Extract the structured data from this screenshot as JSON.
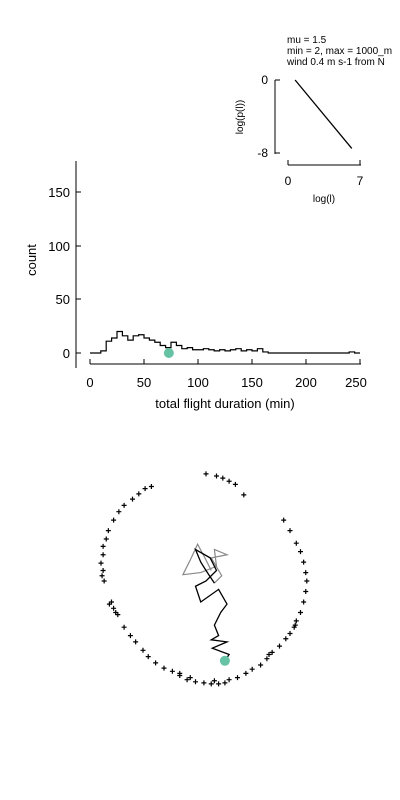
{
  "colors": {
    "marker": "#66c2a5",
    "line": "#000000",
    "track_old": "#888888"
  },
  "chart_data": [
    {
      "type": "line",
      "panel": "inset",
      "annotation_lines": [
        "mu = 1.5",
        "min = 2, max = 1000_m",
        "wind 0.4 m s-1 from N"
      ],
      "xlabel": "log(l)",
      "ylabel": "log(p(l))",
      "xlim": [
        0,
        7
      ],
      "ylim": [
        -8,
        0
      ],
      "xticks": [
        "0",
        "7"
      ],
      "yticks": [
        "0",
        "-8"
      ],
      "x": [
        0.69,
        6.2
      ],
      "y": [
        0,
        -7.5
      ]
    },
    {
      "type": "bar",
      "panel": "histogram",
      "style": "step",
      "xlabel": "total flight duration (min)",
      "ylabel": "count",
      "xlim": [
        0,
        250
      ],
      "ylim": [
        -12,
        180
      ],
      "xticks": [
        "0",
        "50",
        "100",
        "150",
        "200",
        "250"
      ],
      "yticks": [
        "0",
        "50",
        "100",
        "150"
      ],
      "bin_width": 5,
      "bin_starts": [
        0,
        5,
        10,
        15,
        20,
        25,
        30,
        35,
        40,
        45,
        50,
        55,
        60,
        65,
        70,
        75,
        80,
        85,
        90,
        95,
        100,
        105,
        110,
        115,
        120,
        125,
        130,
        135,
        140,
        145,
        150,
        155,
        160,
        165,
        170,
        175,
        180,
        185,
        190,
        195,
        200,
        205,
        210,
        215,
        220,
        225,
        230,
        235,
        240,
        245
      ],
      "counts": [
        0,
        0,
        2,
        11,
        14,
        20,
        16,
        12,
        16,
        17,
        14,
        12,
        10,
        7,
        5,
        10,
        7,
        4,
        5,
        3,
        3,
        4,
        3,
        2,
        3,
        2,
        3,
        4,
        2,
        3,
        2,
        4,
        1,
        0,
        0,
        0,
        0,
        0,
        0,
        0,
        0,
        0,
        0,
        0,
        0,
        0,
        0,
        0,
        1,
        0
      ],
      "marker": {
        "x": 73,
        "y": 0
      }
    },
    {
      "type": "scatter",
      "panel": "trajectory",
      "grid": false,
      "xlim": [
        -1,
        1
      ],
      "ylim": [
        -1,
        1
      ],
      "boundary_points_xy": [
        [
          0.0,
          1.02
        ],
        [
          0.1,
          1.0
        ],
        [
          0.16,
          0.98
        ],
        [
          0.22,
          0.95
        ],
        [
          0.28,
          0.92
        ],
        [
          -0.52,
          0.9
        ],
        [
          -0.58,
          0.88
        ],
        [
          -0.64,
          0.83
        ],
        [
          -0.78,
          0.72
        ],
        [
          -0.83,
          0.66
        ],
        [
          -0.88,
          0.58
        ],
        [
          -0.93,
          0.48
        ],
        [
          -0.95,
          0.4
        ],
        [
          -0.98,
          0.33
        ],
        [
          -0.98,
          0.25
        ],
        [
          -1.0,
          0.17
        ],
        [
          -0.98,
          0.1
        ],
        [
          -0.99,
          0.05
        ],
        [
          -0.97,
          0.0
        ],
        [
          -0.9,
          -0.2
        ],
        [
          -0.88,
          -0.26
        ],
        [
          -0.86,
          -0.3
        ],
        [
          -0.84,
          -0.32
        ],
        [
          -0.78,
          -0.44
        ],
        [
          -0.72,
          -0.52
        ],
        [
          -0.67,
          -0.58
        ],
        [
          -0.6,
          -0.66
        ],
        [
          -0.55,
          -0.72
        ],
        [
          -0.48,
          -0.78
        ],
        [
          -0.4,
          -0.83
        ],
        [
          -0.32,
          -0.86
        ],
        [
          -0.25,
          -0.9
        ],
        [
          -0.18,
          -0.94
        ],
        [
          -0.1,
          -0.96
        ],
        [
          -0.02,
          -0.97
        ],
        [
          0.05,
          -0.98
        ],
        [
          0.12,
          -0.98
        ],
        [
          0.18,
          -0.97
        ],
        [
          0.22,
          -0.94
        ],
        [
          0.3,
          -0.92
        ],
        [
          0.38,
          -0.88
        ],
        [
          0.44,
          -0.84
        ],
        [
          0.52,
          -0.8
        ],
        [
          0.58,
          -0.74
        ],
        [
          0.63,
          -0.68
        ],
        [
          0.7,
          -0.62
        ],
        [
          0.76,
          -0.55
        ],
        [
          0.8,
          -0.5
        ],
        [
          0.84,
          -0.44
        ],
        [
          0.86,
          -0.38
        ],
        [
          0.9,
          -0.3
        ],
        [
          0.93,
          -0.2
        ],
        [
          0.95,
          -0.1
        ],
        [
          0.96,
          0.0
        ],
        [
          0.95,
          0.08
        ],
        [
          0.93,
          0.18
        ],
        [
          0.9,
          0.28
        ],
        [
          0.86,
          0.36
        ],
        [
          0.8,
          0.48
        ],
        [
          0.74,
          0.58
        ],
        [
          0.36,
          0.82
        ],
        [
          -0.25,
          -0.88
        ],
        [
          -0.15,
          -0.92
        ],
        [
          0.08,
          -0.95
        ],
        [
          0.6,
          -0.7
        ],
        [
          0.85,
          -0.42
        ],
        [
          -0.92,
          -0.22
        ],
        [
          -0.7,
          0.78
        ]
      ],
      "track_gray_xy": [
        [
          0.05,
          0.1
        ],
        [
          0.0,
          0.2
        ],
        [
          -0.08,
          0.35
        ],
        [
          -0.15,
          0.2
        ],
        [
          -0.22,
          0.06
        ],
        [
          -0.05,
          0.08
        ],
        [
          0.1,
          0.14
        ],
        [
          0.08,
          0.3
        ],
        [
          0.2,
          0.25
        ],
        [
          0.05,
          0.22
        ],
        [
          0.15,
          0.05
        ],
        [
          0.08,
          -0.02
        ]
      ],
      "track_black_xy": [
        [
          0.08,
          -0.02
        ],
        [
          0.0,
          0.1
        ],
        [
          -0.05,
          0.18
        ],
        [
          -0.1,
          0.3
        ],
        [
          0.04,
          0.22
        ],
        [
          0.1,
          0.1
        ],
        [
          0.0,
          0.0
        ],
        [
          -0.1,
          -0.05
        ],
        [
          -0.05,
          -0.2
        ],
        [
          0.12,
          -0.08
        ],
        [
          0.2,
          -0.22
        ],
        [
          0.14,
          -0.3
        ],
        [
          0.08,
          -0.42
        ],
        [
          0.12,
          -0.52
        ],
        [
          0.05,
          -0.56
        ],
        [
          0.2,
          -0.58
        ],
        [
          0.06,
          -0.64
        ],
        [
          0.22,
          -0.7
        ],
        [
          0.18,
          -0.76
        ]
      ],
      "marker": {
        "x": 0.18,
        "y": -0.76
      }
    }
  ]
}
